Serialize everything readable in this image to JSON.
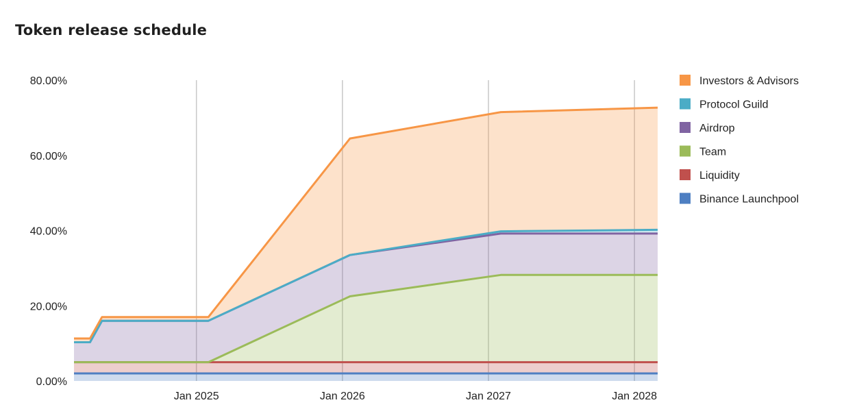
{
  "chart_data": {
    "type": "area",
    "stacked": true,
    "title": "Token release schedule",
    "xlabel": "",
    "ylabel": "",
    "x": [
      "2024-03-01",
      "2024-04-10",
      "2024-05-10",
      "2025-01-31",
      "2026-01-20",
      "2027-02-01",
      "2028-02-28"
    ],
    "xlim": [
      "2024-03-01",
      "2028-02-28"
    ],
    "x_ticks": [
      "2025-01-01",
      "2026-01-01",
      "2027-01-01",
      "2028-01-01"
    ],
    "x_tick_labels": [
      "Jan 2025",
      "Jan 2026",
      "Jan 2027",
      "Jan 2028"
    ],
    "ylim": [
      0,
      80
    ],
    "y_ticks": [
      0,
      20,
      40,
      60,
      80
    ],
    "y_tick_labels": [
      "0.00%",
      "20.00%",
      "40.00%",
      "60.00%",
      "80.00%"
    ],
    "grid": "vertical",
    "legend_position": "right",
    "series": [
      {
        "name": "Binance Launchpool",
        "color": "#4e7fc2",
        "values": [
          2,
          2,
          2,
          2,
          2,
          2,
          2
        ]
      },
      {
        "name": "Liquidity",
        "color": "#c0504d",
        "values": [
          3,
          3,
          3,
          3,
          3,
          3,
          3
        ]
      },
      {
        "name": "Team",
        "color": "#9bbb59",
        "values": [
          0,
          0,
          0,
          0,
          17.5,
          23.2,
          23.2
        ]
      },
      {
        "name": "Airdrop",
        "color": "#8064a2",
        "values": [
          5.3,
          5.3,
          11,
          11,
          11,
          11,
          11
        ]
      },
      {
        "name": "Protocol Guild",
        "color": "#4bacc6",
        "values": [
          0,
          0,
          0,
          0,
          0,
          0.6,
          1
        ]
      },
      {
        "name": "Investors & Advisors",
        "color": "#f79646",
        "values": [
          1,
          1,
          1,
          1,
          31,
          31.7,
          32.5
        ]
      }
    ]
  }
}
